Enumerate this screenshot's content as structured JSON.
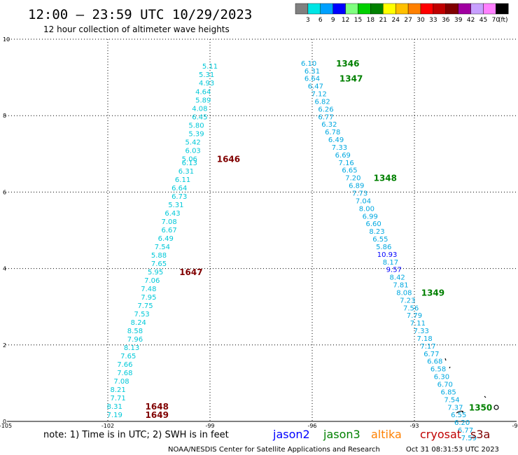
{
  "header": {
    "title": "12:00 – 23:59 UTC 10/29/2023",
    "subtitle": "12 hour collection of altimeter wave heights"
  },
  "color_scale": {
    "labels": [
      "3",
      "6",
      "9",
      "12",
      "15",
      "18",
      "21",
      "24",
      "27",
      "30",
      "33",
      "36",
      "39",
      "42",
      "45",
      "70"
    ],
    "unit": "(ft)",
    "colors": [
      "#808080",
      "#00e5e5",
      "#00a0ff",
      "#0000ff",
      "#7fff7f",
      "#00d000",
      "#008000",
      "#ffff00",
      "#ffc000",
      "#ff8000",
      "#ff0000",
      "#c00000",
      "#800000",
      "#a000a0",
      "#c8a0ff",
      "#ff80ff",
      "#000000"
    ]
  },
  "legend": {
    "note": "note: 1) Time is in UTC; 2) SWH is in feet",
    "satellites": [
      {
        "name": "jason2",
        "color": "#0000ff"
      },
      {
        "name": "jason3",
        "color": "#008000"
      },
      {
        "name": "altika",
        "color": "#ff8000"
      },
      {
        "name": "cryosat",
        "color": "#c00000"
      },
      {
        "name": "s3a",
        "color": "#800000"
      }
    ]
  },
  "footer": {
    "credit": "NOAA/NESDIS Center for Satellite Applications and Research",
    "timestamp": "Oct 31 08:31:53 UTC 2023"
  },
  "chart_data": {
    "type": "scatter",
    "x_ticks": [
      "-105",
      "-102",
      "-99",
      "-96",
      "-93",
      "-90"
    ],
    "y_ticks": [
      "0",
      "2",
      "4",
      "6",
      "8",
      "10"
    ],
    "xlim": [
      -105,
      -90
    ],
    "ylim": [
      0,
      10
    ],
    "grid": true,
    "tracks": [
      {
        "color": "#00c8d8",
        "points": [
          [
            -101.8,
            0.18,
            "7.19"
          ],
          [
            -101.8,
            0.4,
            "8.31"
          ],
          [
            -101.7,
            0.62,
            "7.71"
          ],
          [
            -101.7,
            0.84,
            "8.21"
          ],
          [
            -101.6,
            1.06,
            "7.08"
          ],
          [
            -101.5,
            1.28,
            "7.68"
          ],
          [
            -101.5,
            1.5,
            "7.66"
          ],
          [
            -101.4,
            1.72,
            "7.65"
          ],
          [
            -101.3,
            1.94,
            "8.13"
          ],
          [
            -101.2,
            2.16,
            "7.96"
          ],
          [
            -101.2,
            2.38,
            "8.58"
          ],
          [
            -101.1,
            2.6,
            "8.24"
          ],
          [
            -101.0,
            2.82,
            "7.53"
          ],
          [
            -100.9,
            3.04,
            "7.75"
          ],
          [
            -100.8,
            3.26,
            "7.95"
          ],
          [
            -100.8,
            3.48,
            "7.48"
          ],
          [
            -100.7,
            3.7,
            "7.06"
          ],
          [
            -100.6,
            3.92,
            "5.95"
          ],
          [
            -100.5,
            4.14,
            "7.65"
          ],
          [
            -100.5,
            4.36,
            "5.88"
          ],
          [
            -100.4,
            4.58,
            "7.54"
          ],
          [
            -100.3,
            4.8,
            "6.49"
          ],
          [
            -100.2,
            5.02,
            "6.67"
          ],
          [
            -100.2,
            5.24,
            "7.08"
          ],
          [
            -100.1,
            5.46,
            "6.43"
          ],
          [
            -100.0,
            5.68,
            "5.31"
          ],
          [
            -99.9,
            5.9,
            "6.73"
          ],
          [
            -99.9,
            6.12,
            "6.64"
          ],
          [
            -99.8,
            6.34,
            "6.11"
          ],
          [
            -99.7,
            6.56,
            "6.31"
          ],
          [
            -99.6,
            6.78,
            "6.13"
          ],
          [
            -99.6,
            6.88,
            "5.06"
          ],
          [
            -99.5,
            7.1,
            "6.03"
          ],
          [
            -99.5,
            7.32,
            "5.42"
          ],
          [
            -99.4,
            7.54,
            "5.39"
          ],
          [
            -99.4,
            7.76,
            "5.80"
          ],
          [
            -99.3,
            7.98,
            "6.45"
          ],
          [
            -99.3,
            8.2,
            "4.08"
          ],
          [
            -99.2,
            8.42,
            "5.89"
          ],
          [
            -99.2,
            8.64,
            "4.64"
          ],
          [
            -99.1,
            8.86,
            "4.93"
          ],
          [
            -99.1,
            9.08,
            "5.31"
          ],
          [
            -99.0,
            9.3,
            "5.11"
          ]
        ]
      },
      {
        "color": "#00a8e0",
        "points": [
          [
            -96.1,
            9.38,
            "6.10"
          ],
          [
            -96.0,
            9.18,
            "6.31"
          ],
          [
            -96.0,
            8.98,
            "6.64"
          ],
          [
            -95.9,
            8.78,
            "6.47"
          ],
          [
            -95.8,
            8.58,
            "7.12"
          ],
          [
            -95.7,
            8.38,
            "6.82"
          ],
          [
            -95.6,
            8.18,
            "6.26"
          ],
          [
            -95.6,
            7.98,
            "6.77"
          ],
          [
            -95.5,
            7.78,
            "6.32"
          ],
          [
            -95.4,
            7.58,
            "6.78"
          ],
          [
            -95.3,
            7.38,
            "6.49"
          ],
          [
            -95.2,
            7.18,
            "7.33"
          ],
          [
            -95.1,
            6.98,
            "6.69"
          ],
          [
            -95.0,
            6.78,
            "7.16"
          ],
          [
            -94.9,
            6.58,
            "6.65"
          ],
          [
            -94.8,
            6.38,
            "7.20"
          ],
          [
            -94.7,
            6.18,
            "6.89"
          ],
          [
            -94.6,
            5.98,
            "7.73"
          ],
          [
            -94.5,
            5.78,
            "7.04"
          ],
          [
            -94.4,
            5.58,
            "8.00"
          ],
          [
            -94.3,
            5.38,
            "6.99"
          ],
          [
            -94.2,
            5.18,
            "6.60"
          ],
          [
            -94.1,
            4.98,
            "8.23"
          ],
          [
            -94.0,
            4.78,
            "6.55"
          ],
          [
            -93.9,
            4.58,
            "5.86"
          ],
          [
            -93.8,
            4.38,
            "10.93"
          ],
          [
            -93.7,
            4.18,
            "8.17"
          ],
          [
            -93.6,
            3.98,
            "9.57"
          ],
          [
            -93.5,
            3.78,
            "8.42"
          ],
          [
            -93.4,
            3.58,
            "7.81"
          ],
          [
            -93.3,
            3.38,
            "8.08"
          ],
          [
            -93.2,
            3.18,
            "7.23"
          ],
          [
            -93.1,
            2.98,
            "7.56"
          ],
          [
            -93.0,
            2.78,
            "7.79"
          ],
          [
            -92.9,
            2.58,
            "7.11"
          ],
          [
            -92.8,
            2.38,
            "7.33"
          ],
          [
            -92.7,
            2.18,
            "7.18"
          ],
          [
            -92.6,
            1.98,
            "7.17"
          ],
          [
            -92.5,
            1.78,
            "6.77"
          ],
          [
            -92.4,
            1.58,
            "6.68"
          ],
          [
            -92.3,
            1.38,
            "6.58"
          ],
          [
            -92.2,
            1.18,
            "6.30"
          ],
          [
            -92.1,
            0.98,
            "6.70"
          ],
          [
            -92.0,
            0.78,
            "6.85"
          ],
          [
            -91.9,
            0.58,
            "7.54"
          ],
          [
            -91.8,
            0.38,
            "7.37"
          ],
          [
            -91.7,
            0.18,
            "6.55"
          ],
          [
            -91.6,
            -0.02,
            "6.20"
          ],
          [
            -91.5,
            -0.22,
            "6.77"
          ],
          [
            -91.4,
            -0.42,
            "7.59"
          ]
        ]
      }
    ],
    "pass_labels": [
      {
        "x": -95.3,
        "y": 9.38,
        "text": "1346",
        "color": "#008000"
      },
      {
        "x": -95.2,
        "y": 8.98,
        "text": "1347",
        "color": "#008000"
      },
      {
        "x": -94.2,
        "y": 6.38,
        "text": "1348",
        "color": "#008000"
      },
      {
        "x": -92.8,
        "y": 3.38,
        "text": "1349",
        "color": "#008000"
      },
      {
        "x": -91.4,
        "y": 0.38,
        "text": "1350",
        "color": "#008000"
      },
      {
        "x": -98.8,
        "y": 6.88,
        "text": "1646",
        "color": "#800000"
      },
      {
        "x": -99.9,
        "y": 3.92,
        "text": "1647",
        "color": "#800000"
      },
      {
        "x": -100.9,
        "y": 0.4,
        "text": "1648",
        "color": "#800000"
      },
      {
        "x": -100.9,
        "y": 0.18,
        "text": "1649",
        "color": "#800000"
      }
    ]
  }
}
